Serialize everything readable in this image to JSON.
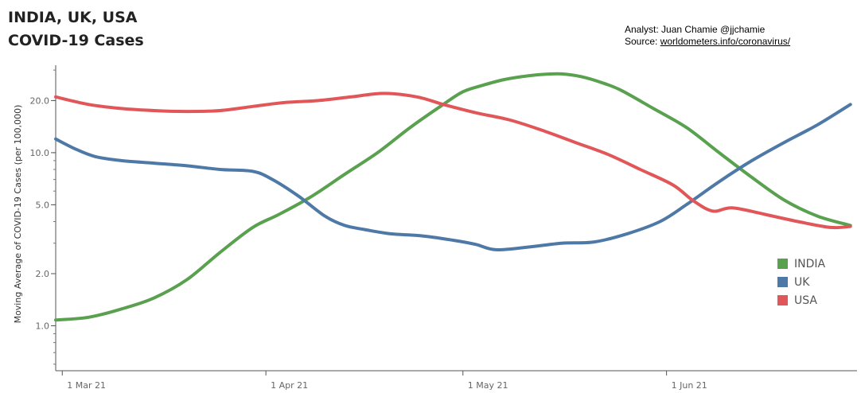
{
  "title": [
    "INDIA, UK, USA",
    "COVID-19 Cases"
  ],
  "credits": {
    "analyst": "Analyst: Juan Chamie @jjchamie",
    "source_prefix": "Source: ",
    "source_link": "worldometers.info/coronavirus/"
  },
  "chart_data": {
    "type": "line",
    "ylabel": "Moving Average of COVID-19 Cases (per 100,000)",
    "y_scale": "log",
    "ylim": [
      0.55,
      32
    ],
    "xlim": [
      "2021-02-28",
      "2021-06-30"
    ],
    "x_ticks": [
      {
        "date": "2021-03-01",
        "label": "1 Mar 21"
      },
      {
        "date": "2021-04-01",
        "label": "1 Apr 21"
      },
      {
        "date": "2021-05-01",
        "label": "1 May 21"
      },
      {
        "date": "2021-06-01",
        "label": "1 Jun 21"
      }
    ],
    "y_ticks": [
      {
        "value": 1,
        "label": "1.0"
      },
      {
        "value": 2,
        "label": "2.0"
      },
      {
        "value": 5,
        "label": "5.0"
      },
      {
        "value": 10,
        "label": "10.0"
      },
      {
        "value": 20,
        "label": "20.0"
      }
    ],
    "legend_position": "right",
    "series": [
      {
        "name": "INDIA",
        "color": "#59a14f",
        "points": [
          [
            "2021-02-28",
            1.08
          ],
          [
            "2021-03-05",
            1.12
          ],
          [
            "2021-03-10",
            1.25
          ],
          [
            "2021-03-15",
            1.45
          ],
          [
            "2021-03-20",
            1.85
          ],
          [
            "2021-03-25",
            2.65
          ],
          [
            "2021-03-30",
            3.7
          ],
          [
            "2021-04-03",
            4.4
          ],
          [
            "2021-04-08",
            5.6
          ],
          [
            "2021-04-13",
            7.5
          ],
          [
            "2021-04-18",
            10.0
          ],
          [
            "2021-04-23",
            14.0
          ],
          [
            "2021-04-28",
            19.0
          ],
          [
            "2021-05-01",
            22.5
          ],
          [
            "2021-05-04",
            24.5
          ],
          [
            "2021-05-07",
            26.3
          ],
          [
            "2021-05-10",
            27.5
          ],
          [
            "2021-05-13",
            28.3
          ],
          [
            "2021-05-16",
            28.5
          ],
          [
            "2021-05-19",
            27.5
          ],
          [
            "2021-05-22",
            25.5
          ],
          [
            "2021-05-25",
            23.0
          ],
          [
            "2021-05-30",
            18.0
          ],
          [
            "2021-06-04",
            14.0
          ],
          [
            "2021-06-09",
            10.0
          ],
          [
            "2021-06-14",
            7.2
          ],
          [
            "2021-06-19",
            5.3
          ],
          [
            "2021-06-24",
            4.3
          ],
          [
            "2021-06-29",
            3.8
          ]
        ]
      },
      {
        "name": "UK",
        "color": "#4e79a7",
        "points": [
          [
            "2021-02-28",
            12.0
          ],
          [
            "2021-03-03",
            10.5
          ],
          [
            "2021-03-06",
            9.5
          ],
          [
            "2021-03-10",
            9.0
          ],
          [
            "2021-03-15",
            8.7
          ],
          [
            "2021-03-20",
            8.4
          ],
          [
            "2021-03-25",
            8.0
          ],
          [
            "2021-03-30",
            7.8
          ],
          [
            "2021-04-02",
            7.0
          ],
          [
            "2021-04-06",
            5.6
          ],
          [
            "2021-04-10",
            4.3
          ],
          [
            "2021-04-13",
            3.8
          ],
          [
            "2021-04-16",
            3.6
          ],
          [
            "2021-04-20",
            3.4
          ],
          [
            "2021-04-25",
            3.3
          ],
          [
            "2021-04-30",
            3.1
          ],
          [
            "2021-05-03",
            2.95
          ],
          [
            "2021-05-06",
            2.75
          ],
          [
            "2021-05-11",
            2.85
          ],
          [
            "2021-05-16",
            3.0
          ],
          [
            "2021-05-21",
            3.05
          ],
          [
            "2021-05-26",
            3.4
          ],
          [
            "2021-05-31",
            4.0
          ],
          [
            "2021-06-04",
            5.0
          ],
          [
            "2021-06-09",
            6.8
          ],
          [
            "2021-06-14",
            9.0
          ],
          [
            "2021-06-19",
            11.5
          ],
          [
            "2021-06-24",
            14.5
          ],
          [
            "2021-06-29",
            19.0
          ]
        ]
      },
      {
        "name": "USA",
        "color": "#e15759",
        "points": [
          [
            "2021-02-28",
            21.0
          ],
          [
            "2021-03-05",
            19.0
          ],
          [
            "2021-03-10",
            18.0
          ],
          [
            "2021-03-15",
            17.5
          ],
          [
            "2021-03-20",
            17.3
          ],
          [
            "2021-03-25",
            17.5
          ],
          [
            "2021-03-30",
            18.5
          ],
          [
            "2021-04-04",
            19.5
          ],
          [
            "2021-04-09",
            20.0
          ],
          [
            "2021-04-14",
            21.0
          ],
          [
            "2021-04-19",
            22.0
          ],
          [
            "2021-04-24",
            21.0
          ],
          [
            "2021-04-28",
            19.0
          ],
          [
            "2021-05-03",
            17.0
          ],
          [
            "2021-05-08",
            15.5
          ],
          [
            "2021-05-13",
            13.5
          ],
          [
            "2021-05-18",
            11.5
          ],
          [
            "2021-05-23",
            9.8
          ],
          [
            "2021-05-28",
            8.0
          ],
          [
            "2021-06-02",
            6.5
          ],
          [
            "2021-06-05",
            5.3
          ],
          [
            "2021-06-08",
            4.6
          ],
          [
            "2021-06-11",
            4.8
          ],
          [
            "2021-06-16",
            4.4
          ],
          [
            "2021-06-21",
            4.0
          ],
          [
            "2021-06-26",
            3.7
          ],
          [
            "2021-06-29",
            3.75
          ]
        ]
      }
    ]
  }
}
